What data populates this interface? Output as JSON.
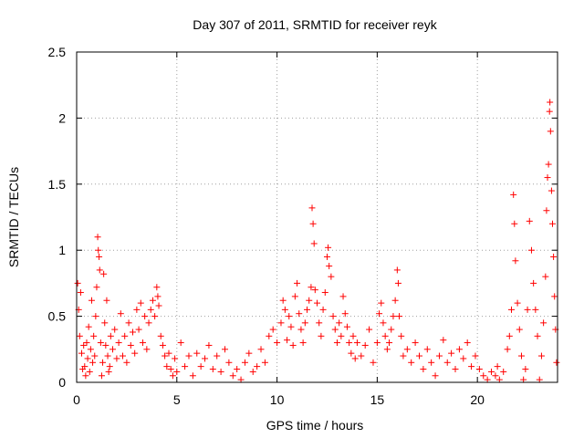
{
  "chart_data": {
    "type": "scatter",
    "title": "Day 307 of 2011, SRMTID for receiver reyk",
    "xlabel": "GPS time / hours",
    "ylabel": "SRMTID / TECUs",
    "xlim": [
      0,
      24
    ],
    "ylim": [
      0,
      2.5
    ],
    "x_ticks": [
      "0",
      "5",
      "10",
      "15",
      "20"
    ],
    "y_ticks": [
      "0",
      "0.5",
      "1",
      "1.5",
      "2",
      "2.5"
    ],
    "grid": true,
    "marker": "+",
    "color": "#ff0000",
    "series": [
      {
        "name": "SRMTID",
        "points": [
          [
            0.05,
            0.75
          ],
          [
            0.1,
            0.55
          ],
          [
            0.15,
            0.35
          ],
          [
            0.2,
            0.68
          ],
          [
            0.25,
            0.22
          ],
          [
            0.3,
            0.1
          ],
          [
            0.35,
            0.28
          ],
          [
            0.4,
            0.12
          ],
          [
            0.45,
            0.05
          ],
          [
            0.5,
            0.3
          ],
          [
            0.55,
            0.18
          ],
          [
            0.6,
            0.42
          ],
          [
            0.65,
            0.08
          ],
          [
            0.7,
            0.25
          ],
          [
            0.75,
            0.62
          ],
          [
            0.8,
            0.15
          ],
          [
            0.85,
            0.35
          ],
          [
            0.9,
            0.2
          ],
          [
            0.95,
            0.5
          ],
          [
            1.0,
            0.72
          ],
          [
            1.05,
            1.1
          ],
          [
            1.08,
            1.0
          ],
          [
            1.12,
            0.95
          ],
          [
            1.15,
            0.85
          ],
          [
            1.2,
            0.3
          ],
          [
            1.25,
            0.05
          ],
          [
            1.3,
            0.15
          ],
          [
            1.35,
            0.82
          ],
          [
            1.4,
            0.45
          ],
          [
            1.45,
            0.28
          ],
          [
            1.5,
            0.62
          ],
          [
            1.55,
            0.2
          ],
          [
            1.6,
            0.08
          ],
          [
            1.65,
            0.12
          ],
          [
            1.7,
            0.35
          ],
          [
            1.8,
            0.25
          ],
          [
            1.9,
            0.4
          ],
          [
            2.0,
            0.18
          ],
          [
            2.1,
            0.3
          ],
          [
            2.2,
            0.52
          ],
          [
            2.3,
            0.2
          ],
          [
            2.4,
            0.35
          ],
          [
            2.5,
            0.15
          ],
          [
            2.6,
            0.45
          ],
          [
            2.7,
            0.28
          ],
          [
            2.8,
            0.38
          ],
          [
            2.9,
            0.22
          ],
          [
            3.0,
            0.55
          ],
          [
            3.1,
            0.4
          ],
          [
            3.2,
            0.6
          ],
          [
            3.3,
            0.3
          ],
          [
            3.4,
            0.5
          ],
          [
            3.5,
            0.25
          ],
          [
            3.6,
            0.45
          ],
          [
            3.7,
            0.55
          ],
          [
            3.8,
            0.62
          ],
          [
            3.9,
            0.5
          ],
          [
            4.0,
            0.72
          ],
          [
            4.05,
            0.65
          ],
          [
            4.1,
            0.58
          ],
          [
            4.2,
            0.35
          ],
          [
            4.3,
            0.28
          ],
          [
            4.4,
            0.2
          ],
          [
            4.5,
            0.12
          ],
          [
            4.6,
            0.22
          ],
          [
            4.7,
            0.1
          ],
          [
            4.8,
            0.05
          ],
          [
            4.9,
            0.18
          ],
          [
            5.0,
            0.08
          ],
          [
            5.2,
            0.3
          ],
          [
            5.4,
            0.12
          ],
          [
            5.6,
            0.2
          ],
          [
            5.8,
            0.05
          ],
          [
            6.0,
            0.22
          ],
          [
            6.2,
            0.12
          ],
          [
            6.4,
            0.18
          ],
          [
            6.6,
            0.28
          ],
          [
            6.8,
            0.1
          ],
          [
            7.0,
            0.2
          ],
          [
            7.2,
            0.08
          ],
          [
            7.4,
            0.25
          ],
          [
            7.6,
            0.15
          ],
          [
            7.8,
            0.05
          ],
          [
            8.0,
            0.1
          ],
          [
            8.2,
            0.02
          ],
          [
            8.4,
            0.15
          ],
          [
            8.6,
            0.22
          ],
          [
            8.8,
            0.08
          ],
          [
            9.0,
            0.12
          ],
          [
            9.2,
            0.25
          ],
          [
            9.4,
            0.15
          ],
          [
            9.6,
            0.35
          ],
          [
            9.8,
            0.4
          ],
          [
            10.0,
            0.3
          ],
          [
            10.2,
            0.45
          ],
          [
            10.3,
            0.62
          ],
          [
            10.4,
            0.55
          ],
          [
            10.5,
            0.32
          ],
          [
            10.6,
            0.5
          ],
          [
            10.7,
            0.42
          ],
          [
            10.8,
            0.28
          ],
          [
            10.9,
            0.65
          ],
          [
            11.0,
            0.75
          ],
          [
            11.1,
            0.52
          ],
          [
            11.2,
            0.4
          ],
          [
            11.3,
            0.3
          ],
          [
            11.4,
            0.45
          ],
          [
            11.5,
            0.55
          ],
          [
            11.6,
            0.62
          ],
          [
            11.7,
            0.72
          ],
          [
            11.75,
            1.32
          ],
          [
            11.8,
            1.2
          ],
          [
            11.85,
            1.05
          ],
          [
            11.9,
            0.7
          ],
          [
            12.0,
            0.6
          ],
          [
            12.1,
            0.45
          ],
          [
            12.2,
            0.35
          ],
          [
            12.3,
            0.55
          ],
          [
            12.4,
            0.68
          ],
          [
            12.5,
            0.95
          ],
          [
            12.55,
            1.02
          ],
          [
            12.6,
            0.88
          ],
          [
            12.7,
            0.8
          ],
          [
            12.8,
            0.5
          ],
          [
            12.9,
            0.4
          ],
          [
            13.0,
            0.3
          ],
          [
            13.1,
            0.45
          ],
          [
            13.2,
            0.35
          ],
          [
            13.3,
            0.65
          ],
          [
            13.4,
            0.52
          ],
          [
            13.5,
            0.42
          ],
          [
            13.6,
            0.3
          ],
          [
            13.7,
            0.22
          ],
          [
            13.8,
            0.35
          ],
          [
            13.9,
            0.18
          ],
          [
            14.0,
            0.3
          ],
          [
            14.2,
            0.2
          ],
          [
            14.4,
            0.28
          ],
          [
            14.6,
            0.4
          ],
          [
            14.8,
            0.15
          ],
          [
            15.0,
            0.3
          ],
          [
            15.1,
            0.52
          ],
          [
            15.2,
            0.6
          ],
          [
            15.3,
            0.45
          ],
          [
            15.4,
            0.35
          ],
          [
            15.5,
            0.25
          ],
          [
            15.6,
            0.3
          ],
          [
            15.7,
            0.4
          ],
          [
            15.8,
            0.5
          ],
          [
            15.9,
            0.62
          ],
          [
            16.0,
            0.85
          ],
          [
            16.05,
            0.75
          ],
          [
            16.1,
            0.5
          ],
          [
            16.2,
            0.35
          ],
          [
            16.3,
            0.2
          ],
          [
            16.5,
            0.25
          ],
          [
            16.7,
            0.15
          ],
          [
            16.9,
            0.3
          ],
          [
            17.1,
            0.2
          ],
          [
            17.3,
            0.1
          ],
          [
            17.5,
            0.25
          ],
          [
            17.7,
            0.15
          ],
          [
            17.9,
            0.05
          ],
          [
            18.1,
            0.2
          ],
          [
            18.3,
            0.32
          ],
          [
            18.5,
            0.15
          ],
          [
            18.7,
            0.22
          ],
          [
            18.9,
            0.1
          ],
          [
            19.1,
            0.25
          ],
          [
            19.3,
            0.18
          ],
          [
            19.5,
            0.3
          ],
          [
            19.7,
            0.12
          ],
          [
            19.9,
            0.2
          ],
          [
            20.1,
            0.1
          ],
          [
            20.3,
            0.05
          ],
          [
            20.5,
            0.02
          ],
          [
            20.7,
            0.08
          ],
          [
            20.9,
            0.05
          ],
          [
            21.0,
            0.12
          ],
          [
            21.1,
            0.02
          ],
          [
            21.3,
            0.08
          ],
          [
            21.5,
            0.25
          ],
          [
            21.6,
            0.35
          ],
          [
            21.7,
            0.55
          ],
          [
            21.8,
            1.42
          ],
          [
            21.85,
            1.2
          ],
          [
            21.9,
            0.92
          ],
          [
            22.0,
            0.6
          ],
          [
            22.1,
            0.4
          ],
          [
            22.2,
            0.2
          ],
          [
            22.3,
            0.02
          ],
          [
            22.4,
            0.1
          ],
          [
            22.5,
            0.55
          ],
          [
            22.6,
            1.22
          ],
          [
            22.7,
            1.0
          ],
          [
            22.8,
            0.75
          ],
          [
            22.9,
            0.55
          ],
          [
            23.0,
            0.35
          ],
          [
            23.1,
            0.02
          ],
          [
            23.2,
            0.2
          ],
          [
            23.3,
            0.45
          ],
          [
            23.4,
            0.8
          ],
          [
            23.45,
            1.3
          ],
          [
            23.5,
            1.55
          ],
          [
            23.55,
            1.65
          ],
          [
            23.6,
            2.05
          ],
          [
            23.62,
            2.12
          ],
          [
            23.65,
            1.9
          ],
          [
            23.7,
            1.45
          ],
          [
            23.75,
            1.2
          ],
          [
            23.8,
            0.95
          ],
          [
            23.85,
            0.65
          ],
          [
            23.9,
            0.4
          ],
          [
            23.95,
            0.15
          ]
        ]
      }
    ]
  }
}
